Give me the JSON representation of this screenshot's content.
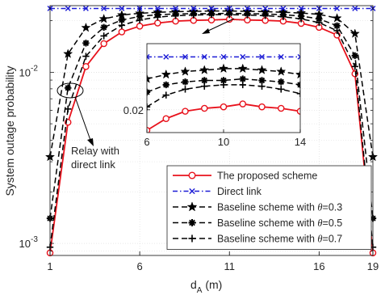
{
  "chart_data": {
    "type": "line",
    "xlabel": "d_A (m)",
    "xlabel_main": "d",
    "xlabel_sub": "A",
    "xlabel_unit": " (m)",
    "ylabel": "System outage probability",
    "x_scale": "linear",
    "y_scale": "log",
    "xlim": [
      1,
      19
    ],
    "ylim": [
      0.00085,
      0.0245
    ],
    "x_ticks": [
      1,
      6,
      11,
      16,
      19
    ],
    "x_tick_labels": [
      "1",
      "6",
      "11",
      "16",
      "19"
    ],
    "y_ticks": [
      0.001,
      0.01
    ],
    "y_tick_base": "10",
    "y_tick_exponents": [
      "-3",
      "-2"
    ],
    "grid": true,
    "legend_position": "bottom-right",
    "x": [
      1,
      2,
      3,
      4,
      5,
      6,
      7,
      8,
      9,
      10,
      11,
      12,
      13,
      14,
      15,
      16,
      17,
      18,
      19
    ],
    "series": [
      {
        "name": "The proposed scheme",
        "color": "#e8121c",
        "dash": "solid",
        "marker": "circle",
        "values": [
          0.00088,
          0.0051,
          0.0108,
          0.0147,
          0.0172,
          0.0186,
          0.0194,
          0.0199,
          0.0201,
          0.0202,
          0.0204,
          0.0202,
          0.0201,
          0.0199,
          0.0193,
          0.0183,
          0.0165,
          0.0098,
          0.00088
        ]
      },
      {
        "name": "Direct link",
        "color": "#1c1cd6",
        "dash": "dashdot",
        "marker": "x",
        "values": [
          0.0236,
          0.0236,
          0.0236,
          0.0236,
          0.0236,
          0.0236,
          0.0236,
          0.0236,
          0.0236,
          0.0236,
          0.0236,
          0.0236,
          0.0236,
          0.0236,
          0.0236,
          0.0236,
          0.0236,
          0.0236,
          0.0236
        ]
      },
      {
        "name": "Baseline scheme with θ=0.3",
        "name_prefix": "Baseline scheme with ",
        "theta_value": "=0.3",
        "color": "#000000",
        "dash": "dashed",
        "marker": "star",
        "values": [
          0.0032,
          0.0128,
          0.0182,
          0.0205,
          0.0216,
          0.0221,
          0.0224,
          0.0226,
          0.0227,
          0.0228,
          0.0228,
          0.0227,
          0.0226,
          0.0224,
          0.0222,
          0.0218,
          0.0207,
          0.0168,
          0.0032
        ]
      },
      {
        "name": "Baseline scheme with θ=0.5",
        "name_prefix": "Baseline scheme with ",
        "theta_value": "=0.5",
        "color": "#000000",
        "dash": "dashed",
        "marker": "asterisk",
        "values": [
          0.0014,
          0.0081,
          0.0148,
          0.0183,
          0.0202,
          0.0212,
          0.0217,
          0.0219,
          0.022,
          0.022,
          0.0221,
          0.022,
          0.0219,
          0.0217,
          0.0213,
          0.0205,
          0.0187,
          0.0125,
          0.0014
        ]
      },
      {
        "name": "Baseline scheme with θ=0.7",
        "name_prefix": "Baseline scheme with ",
        "theta_value": "=0.7",
        "color": "#000000",
        "dash": "dashed",
        "marker": "plus",
        "values": [
          0.00095,
          0.0061,
          0.0124,
          0.0163,
          0.0188,
          0.0202,
          0.021,
          0.0214,
          0.0216,
          0.0217,
          0.0217,
          0.0216,
          0.0214,
          0.0211,
          0.0205,
          0.0195,
          0.0175,
          0.0108,
          0.00095
        ]
      }
    ],
    "annotations": [
      {
        "text_line1": "Relay with",
        "text_line2": "direct link"
      }
    ],
    "inset": {
      "xlim": [
        6,
        14
      ],
      "ylim": [
        0.01845,
        0.0245
      ],
      "x_ticks": [
        6,
        10,
        14
      ],
      "x_tick_labels": [
        "6",
        "10",
        "14"
      ],
      "y_tick_label": "0.02",
      "y_tick_value": 0.02
    }
  }
}
